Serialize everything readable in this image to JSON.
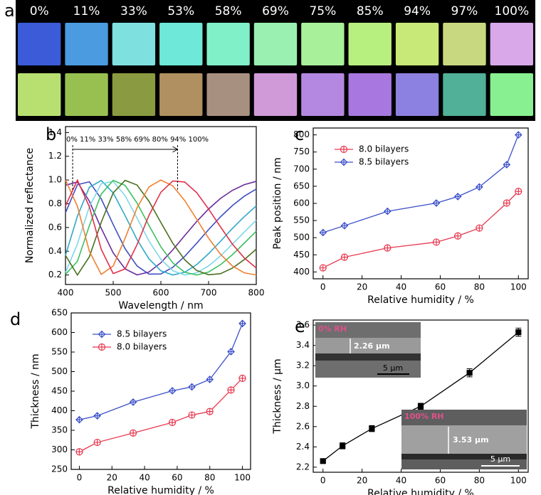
{
  "panel_a": {
    "label": "a",
    "columns": [
      "0%",
      "11%",
      "33%",
      "53%",
      "58%",
      "69%",
      "75%",
      "85%",
      "94%",
      "97%",
      "100%"
    ],
    "row_colors": [
      [
        "#3b5bd8",
        "#4a9be0",
        "#7fe0e0",
        "#6ee8d8",
        "#80f0c8",
        "#9af0b0",
        "#a8f09a",
        "#b8f080",
        "#c8e878",
        "#c8d880",
        "#d8a8e8"
      ],
      [
        "#b8e070",
        "#98c050",
        "#8a9a40",
        "#b09060",
        "#a89080",
        "#d09ad8",
        "#b488e0",
        "#a878e0",
        "#8c80e0",
        "#50b098",
        "#88f090"
      ]
    ]
  },
  "chart_data": [
    {
      "type": "line",
      "label": "b",
      "x_label": "Wavelength / nm",
      "y_label": "Normalized reflectance",
      "annotation": "0% 11% 33% 58% 69% 80% 94% 100%",
      "arrow_x": [
        415,
        635
      ],
      "xlim": [
        400,
        800
      ],
      "xticks": [
        400,
        500,
        600,
        700,
        800
      ],
      "ylim": [
        0.12,
        1.45
      ],
      "yticks": [
        0.2,
        0.4,
        0.6,
        0.8,
        {
          "value": 1,
          "label": "1.0"
        },
        1.2,
        1.4
      ],
      "x": [
        400,
        425,
        450,
        475,
        500,
        525,
        550,
        575,
        600,
        625,
        650,
        675,
        700,
        725,
        750,
        775,
        800
      ],
      "series": [
        {
          "color": "#6a2c9a",
          "values": [
            0.956,
            0.983,
            0.822,
            0.593,
            0.386,
            0.251,
            0.201,
            0.225,
            0.303,
            0.412,
            0.532,
            0.65,
            0.756,
            0.845,
            0.913,
            0.961,
            0.989
          ]
        },
        {
          "color": "#3f4fc0",
          "values": [
            0.724,
            0.961,
            0.985,
            0.841,
            0.625,
            0.421,
            0.276,
            0.207,
            0.209,
            0.265,
            0.357,
            0.467,
            0.582,
            0.69,
            0.785,
            0.864,
            0.924
          ]
        },
        {
          "color": "#2fa8c8",
          "values": [
            0.365,
            0.695,
            0.939,
            0.996,
            0.892,
            0.7,
            0.498,
            0.336,
            0.235,
            0.2,
            0.223,
            0.287,
            0.379,
            0.484,
            0.592,
            0.692,
            0.782
          ]
        },
        {
          "color": "#7fd8e8",
          "values": [
            0.22,
            0.462,
            0.775,
            0.969,
            0.988,
            0.868,
            0.68,
            0.486,
            0.332,
            0.236,
            0.2,
            0.218,
            0.276,
            0.361,
            0.46,
            0.562,
            0.662
          ]
        },
        {
          "color": "#3cc060",
          "values": [
            0.205,
            0.315,
            0.615,
            0.881,
            0.997,
            0.955,
            0.806,
            0.618,
            0.437,
            0.302,
            0.223,
            0.2,
            0.225,
            0.287,
            0.371,
            0.469,
            0.569
          ]
        },
        {
          "color": "#4a7020",
          "values": [
            0.365,
            0.2,
            0.353,
            0.645,
            0.892,
            0.997,
            0.958,
            0.821,
            0.642,
            0.467,
            0.328,
            0.238,
            0.202,
            0.211,
            0.258,
            0.33,
            0.418
          ]
        },
        {
          "color": "#f08030",
          "values": [
            1.0,
            0.779,
            0.4,
            0.205,
            0.276,
            0.51,
            0.766,
            0.942,
            1.0,
            0.95,
            0.827,
            0.67,
            0.51,
            0.375,
            0.276,
            0.218,
            0.2
          ]
        },
        {
          "color": "#e0304a",
          "values": [
            0.782,
            0.999,
            0.775,
            0.416,
            0.212,
            0.251,
            0.455,
            0.702,
            0.897,
            0.992,
            0.983,
            0.894,
            0.756,
            0.605,
            0.46,
            0.343,
            0.259
          ]
        }
      ]
    },
    {
      "type": "line",
      "label": "c",
      "x_label": "Relative humidity / %",
      "y_label": "Peak position / nm",
      "xlim": [
        -5,
        105
      ],
      "xticks": [
        0,
        20,
        40,
        60,
        80,
        100
      ],
      "ylim": [
        380,
        820
      ],
      "yticks": [
        400,
        450,
        500,
        550,
        600,
        650,
        700,
        750,
        800
      ],
      "legend": "upper left",
      "x": [
        0,
        11,
        33,
        58,
        69,
        80,
        94,
        100
      ],
      "series": [
        {
          "name": "8.0 bilayers",
          "color": "#e8384f",
          "marker": "circle",
          "values": [
            412,
            443,
            470,
            487,
            505,
            528,
            601,
            635
          ]
        },
        {
          "name": "8.5 bilayers",
          "color": "#3a4fc8",
          "marker": "diamond",
          "values": [
            515,
            535,
            577,
            601,
            620,
            648,
            713,
            800
          ]
        }
      ]
    },
    {
      "type": "line",
      "label": "d",
      "x_label": "Relative humidity / %",
      "y_label": "Thickness / nm",
      "xlim": [
        -5,
        105
      ],
      "xticks": [
        0,
        20,
        40,
        60,
        80,
        100
      ],
      "ylim": [
        250,
        650
      ],
      "yticks": [
        250,
        300,
        350,
        400,
        450,
        500,
        550,
        600,
        650
      ],
      "legend": "upper left",
      "x": [
        0,
        11,
        33,
        57,
        69,
        80,
        93,
        100
      ],
      "series": [
        {
          "name": "8.5 bilayers",
          "color": "#3a4fc8",
          "marker": "diamond",
          "values": [
            377,
            387,
            422,
            451,
            461,
            480,
            551,
            623
          ]
        },
        {
          "name": "8.0 bilayers",
          "color": "#e8384f",
          "marker": "circle",
          "values": [
            295,
            319,
            343,
            370,
            389,
            398,
            453,
            483
          ]
        }
      ]
    },
    {
      "type": "line",
      "label": "e",
      "x_label": "Relative humidity / %",
      "y_label": "Thickness / μm",
      "xlim": [
        -5,
        105
      ],
      "xticks": [
        0,
        20,
        40,
        60,
        80,
        100
      ],
      "ylim": [
        2.15,
        3.65
      ],
      "yticks": [
        2.2,
        2.4,
        2.6,
        2.8,
        {
          "value": 3,
          "label": "3.0"
        },
        3.2,
        3.4,
        3.6
      ],
      "x": [
        0,
        10,
        25,
        50,
        75,
        100
      ],
      "series": [
        {
          "color": "#000000",
          "marker": "square",
          "values": [
            2.26,
            2.41,
            2.58,
            2.8,
            3.13,
            3.53
          ],
          "errors": [
            0.02,
            0.03,
            0.03,
            0.03,
            0.04,
            0.04
          ]
        }
      ],
      "insets": [
        {
          "title": "0% RH",
          "thickness": "2.26 μm",
          "scale": "5 μm"
        },
        {
          "title": "100% RH",
          "thickness": "3.53 μm",
          "scale": "5 μm"
        }
      ]
    }
  ]
}
